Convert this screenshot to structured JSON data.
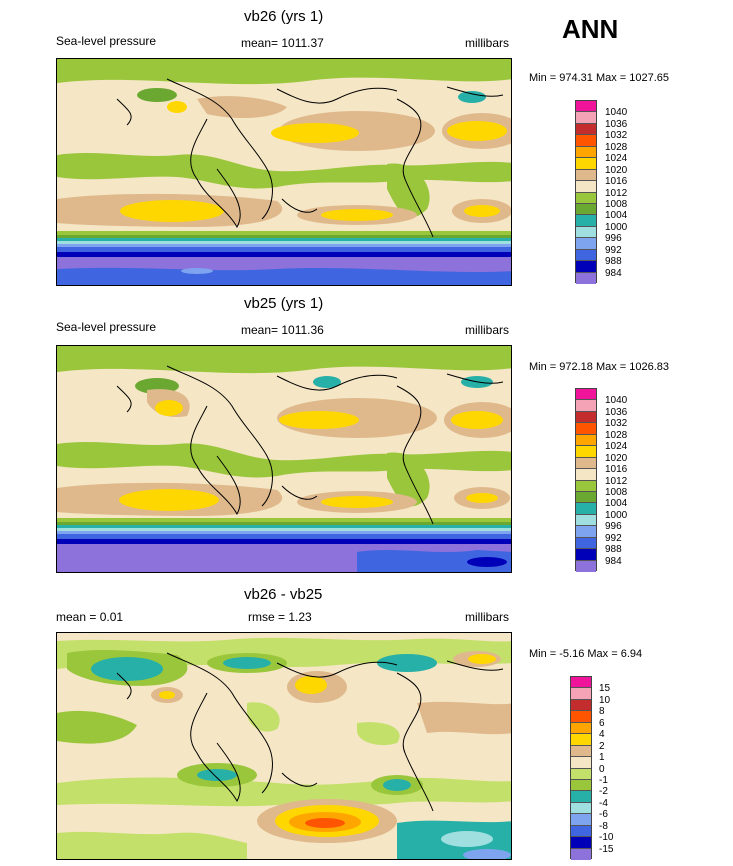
{
  "season": "ANN",
  "units": "millibars",
  "panels": [
    {
      "title": "vb26 (yrs 1)",
      "left_label": "Sea-level pressure",
      "center_label": "mean= 1011.37",
      "minmax": "Min = 974.31 Max = 1027.65",
      "levels": [
        "1040",
        "1036",
        "1032",
        "1028",
        "1024",
        "1020",
        "1016",
        "1012",
        "1008",
        "1004",
        "1000",
        "996",
        "992",
        "988",
        "984"
      ]
    },
    {
      "title": "vb25 (yrs 1)",
      "left_label": "Sea-level pressure",
      "center_label": "mean= 1011.36",
      "minmax": "Min = 972.18 Max = 1026.83",
      "levels": [
        "1040",
        "1036",
        "1032",
        "1028",
        "1024",
        "1020",
        "1016",
        "1012",
        "1008",
        "1004",
        "1000",
        "996",
        "992",
        "988",
        "984"
      ]
    },
    {
      "title": "vb26 - vb25",
      "left_label": "mean =   0.01",
      "center_label": "rmse =   1.23",
      "minmax": "Min =  -5.16 Max =   6.94",
      "levels": [
        "15",
        "10",
        "8",
        "6",
        "4",
        "2",
        "1",
        "0",
        "-1",
        "-2",
        "-4",
        "-6",
        "-8",
        "-10",
        "-15"
      ]
    }
  ],
  "colors": {
    "abs_scale": [
      "#f0149b",
      "#f4a3b6",
      "#c42d2d",
      "#ff5500",
      "#ffa500",
      "#ffd700",
      "#dfb98c",
      "#f5e6c5",
      "#9ac63c",
      "#6aa832",
      "#26b0a8",
      "#a0dfe0",
      "#7ea4f0",
      "#3f66e0",
      "#0000b8",
      "#8d72dc"
    ],
    "diff_scale": [
      "#f0149b",
      "#f4a3b6",
      "#c42d2d",
      "#ff5500",
      "#ffa500",
      "#ffd700",
      "#dfb98c",
      "#f5e6c5",
      "#c3e06a",
      "#9ac63c",
      "#26b0a8",
      "#a0dfe0",
      "#7ea4f0",
      "#3f66e0",
      "#0000b8",
      "#8d72dc"
    ]
  }
}
